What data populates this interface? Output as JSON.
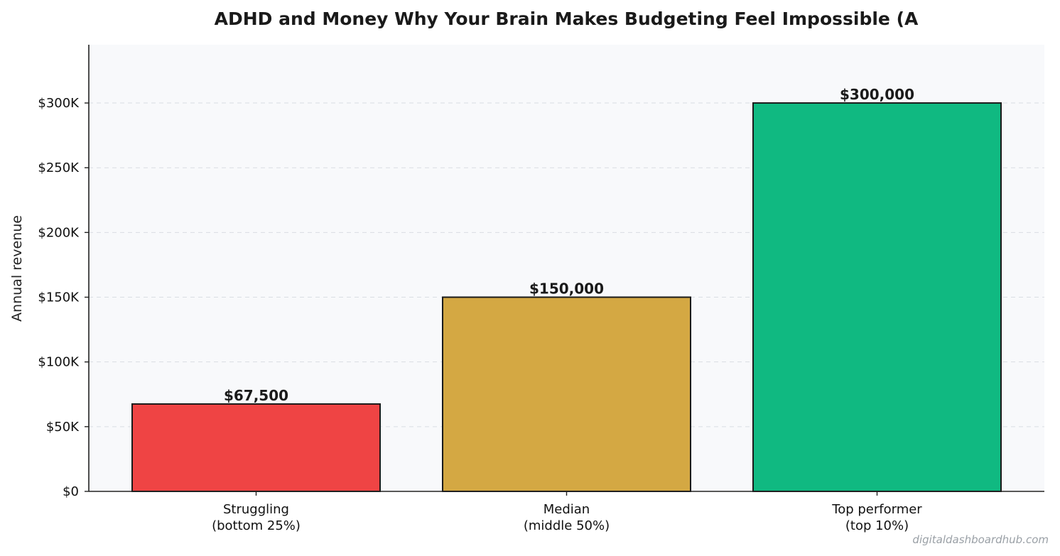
{
  "chart_data": {
    "type": "bar",
    "title": "ADHD and Money  Why Your Brain Makes Budgeting Feel Impossible (A",
    "xlabel": "",
    "ylabel": "Annual revenue",
    "categories": [
      [
        "Struggling",
        "(bottom 25%)"
      ],
      [
        "Median",
        "(middle 50%)"
      ],
      [
        "Top performer",
        "(top 10%)"
      ]
    ],
    "values": [
      67500,
      150000,
      300000
    ],
    "value_labels": [
      "$67,500",
      "$150,000",
      "$300,000"
    ],
    "colors": [
      "#ef4444",
      "#d4a843",
      "#10b981"
    ],
    "ylim": [
      0,
      345000
    ],
    "yticks": [
      0,
      50000,
      100000,
      150000,
      200000,
      250000,
      300000
    ],
    "ytick_labels": [
      "$0",
      "$50K",
      "$100K",
      "$150K",
      "$200K",
      "$250K",
      "$300K"
    ],
    "grid": "y-dashed",
    "legend": "none"
  },
  "watermark": "digitaldashboardhub.com"
}
